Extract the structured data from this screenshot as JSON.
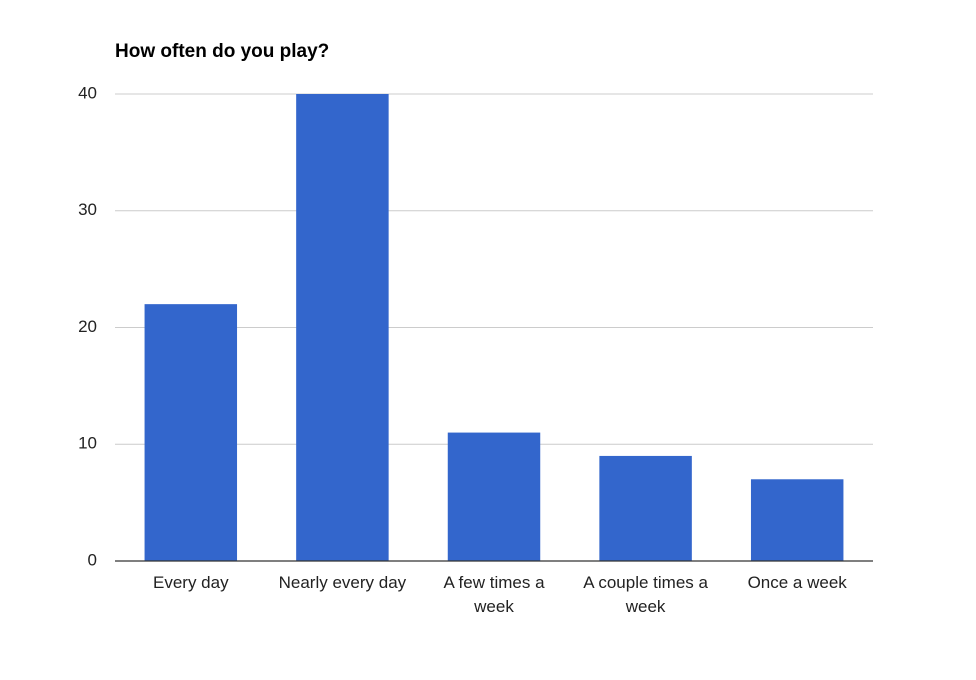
{
  "chart_data": {
    "type": "bar",
    "title": "How often do you play?",
    "categories": [
      "Every day",
      "Nearly every day",
      "A few times a week",
      "A couple times a week",
      "Once a week"
    ],
    "values": [
      22,
      40,
      11,
      9,
      7
    ],
    "color": "#3366cc",
    "ylim": [
      0,
      40
    ],
    "yticks": [
      0,
      10,
      20,
      30,
      40
    ],
    "grid": true
  }
}
